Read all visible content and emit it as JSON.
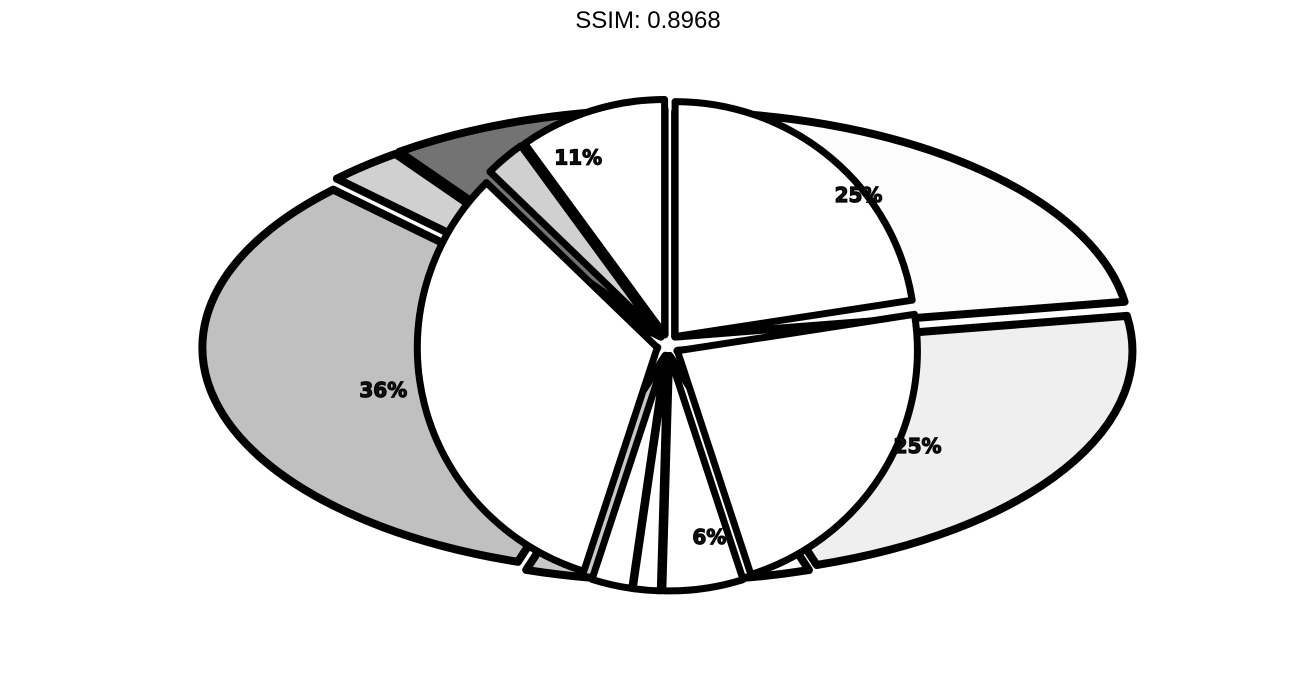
{
  "title": "SSIM: 0.8968",
  "chart_data": {
    "type": "pie",
    "title": "SSIM: 0.8968",
    "slices": [
      {
        "label": "25%",
        "value": 25,
        "color": "#fcfcfc"
      },
      {
        "label": "25%",
        "value": 25,
        "color": "#efefef"
      },
      {
        "label": "6%",
        "value": 6,
        "color": "#ffffff"
      },
      {
        "label": "",
        "value": 2,
        "color": "#f7f7f7"
      },
      {
        "label": "",
        "value": 3,
        "color": "#c8c8c8"
      },
      {
        "label": "36%",
        "value": 36,
        "color": "#c0c0c0"
      },
      {
        "label": "",
        "value": 3,
        "color": "#d0d0d0"
      },
      {
        "label": "11%",
        "value": 11,
        "color": "#737373"
      }
    ],
    "inner_ring": {
      "note": "overlaid pie drawn at smaller radius",
      "slices": [
        {
          "value": 25,
          "color": "#ffffff"
        },
        {
          "value": 25,
          "color": "#ffffff"
        },
        {
          "value": 6,
          "color": "#ffffff"
        },
        {
          "value": 2,
          "color": "#ffffff"
        },
        {
          "value": 3,
          "color": "#ffffff"
        },
        {
          "value": 36,
          "color": "#ffffff"
        },
        {
          "value": 3,
          "color": "#d0d0d0"
        },
        {
          "value": 11,
          "color": "#ffffff"
        }
      ]
    },
    "legend": "none",
    "grid": false
  }
}
